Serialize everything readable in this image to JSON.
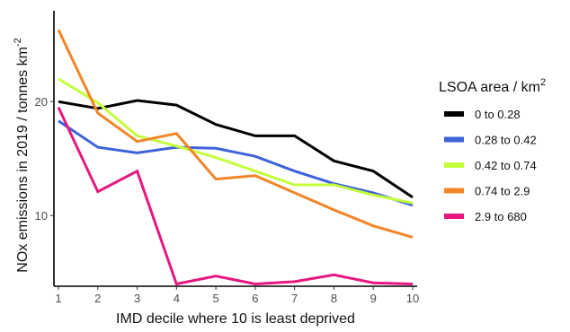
{
  "chart_data": {
    "type": "line",
    "x": [
      1,
      2,
      3,
      4,
      5,
      6,
      7,
      8,
      9,
      10
    ],
    "xlim": [
      1,
      10
    ],
    "ylim": [
      3.8,
      27.5
    ],
    "yticks": [
      10,
      20
    ],
    "xticks": [
      1,
      2,
      3,
      4,
      5,
      6,
      7,
      8,
      9,
      10
    ],
    "xlabel": "IMD decile where 10 is least deprived",
    "ylabel_main": "NOx emissions in  2019 / tonnes  km",
    "ylabel_sup": "-2",
    "legend": {
      "title_main": "LSOA area /  km",
      "title_sup": "2",
      "placement": "right"
    },
    "grid": false,
    "series": [
      {
        "name": "0 to 0.28",
        "color": "#000000",
        "values": [
          20.0,
          19.4,
          20.1,
          19.7,
          18.0,
          17.0,
          17.0,
          14.8,
          13.9,
          11.6
        ]
      },
      {
        "name": "0.28 to 0.42",
        "color": "#3f63d9",
        "values": [
          18.3,
          16.0,
          15.5,
          16.0,
          15.9,
          15.2,
          13.9,
          12.8,
          12.0,
          10.9
        ]
      },
      {
        "name": "0.42 to 0.74",
        "color": "#c4ff3a",
        "values": [
          22.0,
          19.9,
          17.0,
          16.1,
          15.1,
          13.9,
          12.7,
          12.7,
          11.8,
          11.1
        ]
      },
      {
        "name": "0.74 to 2.9",
        "color": "#f28527",
        "values": [
          26.3,
          19.0,
          16.5,
          17.2,
          13.2,
          13.5,
          12.0,
          10.5,
          9.1,
          8.1
        ]
      },
      {
        "name": "2.9 to 680",
        "color": "#e6177f",
        "values": [
          19.5,
          12.1,
          13.9,
          4.0,
          4.7,
          4.0,
          4.2,
          4.8,
          4.1,
          4.0
        ]
      }
    ]
  }
}
